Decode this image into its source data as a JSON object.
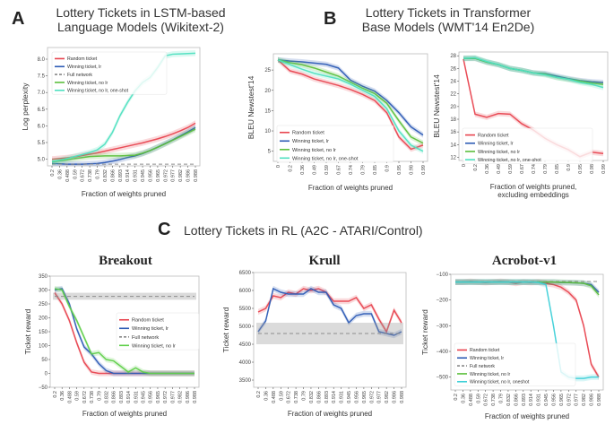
{
  "sections": {
    "A": {
      "letter": "A",
      "title_line1": "Lottery Tickets in LSTM-based",
      "title_line2": "Language Models (Wikitext-2)"
    },
    "B": {
      "letter": "B",
      "title_line1": "Lottery Tickets in Transformer",
      "title_line2": "Base Models (WMT'14 En2De)"
    },
    "C": {
      "letter": "C",
      "title": "Lottery Tickets in RL (A2C - ATARI/Control)"
    }
  },
  "colors": {
    "random": "#e8444f",
    "winning_lr": "#2d5bb5",
    "full": "#888888",
    "winning_nolr": "#5cbf3c",
    "oneshot": "#4fe0c0",
    "oneshot_rl": "#40d0d8",
    "breakout_nolr": "#5fcf4a"
  },
  "chart_data": [
    {
      "id": "lstm",
      "type": "line",
      "title": "",
      "xlabel": "Fraction of weights pruned",
      "ylabel": "Log perplexity",
      "ylim": [
        4.8,
        8.35
      ],
      "yticks": [
        5.0,
        5.5,
        6.0,
        6.5,
        7.0,
        7.5,
        8.0
      ],
      "yticklabels": [
        "5.0",
        "5.5",
        "6.0",
        "6.5",
        "7.0",
        "7.5",
        "8.0"
      ],
      "categories": [
        "0.2",
        "0.36",
        "0.488",
        "0.59",
        "0.672",
        "0.738",
        "0.79",
        "0.832",
        "0.866",
        "0.893",
        "0.914",
        "0.931",
        "0.945",
        "0.956",
        "0.965",
        "0.972",
        "0.977",
        "0.982",
        "0.986",
        "0.988"
      ],
      "legend": "top-left",
      "series": [
        {
          "name": "Random ticket",
          "key": "random",
          "values": [
            5.0,
            5.02,
            5.04,
            5.07,
            5.11,
            5.15,
            5.19,
            5.24,
            5.29,
            5.34,
            5.39,
            5.44,
            5.49,
            5.55,
            5.61,
            5.68,
            5.76,
            5.85,
            5.95,
            6.08
          ]
        },
        {
          "name": "Winning ticket, lr",
          "key": "winning_lr",
          "values": [
            4.87,
            4.86,
            4.85,
            4.85,
            4.85,
            4.86,
            4.87,
            4.9,
            4.94,
            4.99,
            5.05,
            5.1,
            5.17,
            5.26,
            5.36,
            5.47,
            5.58,
            5.7,
            5.82,
            5.95
          ]
        },
        {
          "name": "Full network",
          "key": "full",
          "dashed": true,
          "values": [
            4.85,
            4.85,
            4.85,
            4.85,
            4.85,
            4.85,
            4.85,
            4.85,
            4.85,
            4.85,
            4.85,
            4.85,
            4.85,
            4.85,
            4.85,
            4.85,
            4.85,
            4.85,
            4.85,
            4.85
          ]
        },
        {
          "name": "Winning ticket, no lr",
          "key": "winning_nolr",
          "values": [
            4.92,
            4.95,
            4.98,
            5.02,
            5.05,
            5.08,
            5.09,
            5.1,
            5.1,
            5.1,
            5.11,
            5.12,
            5.18,
            5.26,
            5.36,
            5.46,
            5.57,
            5.68,
            5.79,
            5.9
          ]
        },
        {
          "name": "Winning ticket, no lr, one-shot",
          "key": "oneshot",
          "values": [
            4.93,
            4.97,
            5.02,
            5.08,
            5.14,
            5.2,
            5.28,
            5.45,
            5.8,
            6.3,
            6.7,
            7.05,
            7.3,
            7.45,
            7.75,
            8.1,
            8.15,
            8.16,
            8.17,
            8.18
          ]
        }
      ]
    },
    {
      "id": "transformer1",
      "type": "line",
      "xlabel": "Fraction of weights pruned",
      "ylabel": "BLEU Newstest'14",
      "ylim": [
        2.5,
        29
      ],
      "yticks": [
        5,
        10,
        15,
        20,
        25
      ],
      "yticklabels": [
        "5",
        "10",
        "15",
        "20",
        "25"
      ],
      "categories": [
        "0",
        "0.2",
        "0.36",
        "0.49",
        "0.59",
        "0.67",
        "0.74",
        "0.79",
        "0.85",
        "0.9",
        "0.95",
        "0.98",
        "0.99"
      ],
      "legend": "bottom-left",
      "series": [
        {
          "name": "Random ticket",
          "key": "random",
          "values": [
            27.5,
            24.8,
            24.0,
            22.8,
            22.0,
            21.2,
            20.2,
            19.0,
            17.5,
            14.5,
            8.5,
            5.5,
            6.5
          ]
        },
        {
          "name": "Winning ticket, lr",
          "key": "winning_lr",
          "values": [
            27.5,
            27.2,
            27.0,
            26.7,
            26.4,
            25.5,
            22.5,
            21.0,
            19.8,
            17.5,
            14.5,
            11.0,
            9.0
          ]
        },
        {
          "name": "Winning ticket, no lr",
          "key": "winning_nolr",
          "values": [
            27.5,
            26.8,
            26.3,
            25.5,
            24.5,
            23.5,
            22.0,
            20.5,
            19.2,
            16.8,
            12.5,
            8.5,
            7.0
          ]
        },
        {
          "name": "Winning ticket, no lr, one-shot",
          "key": "oneshot",
          "values": [
            27.5,
            26.3,
            25.2,
            24.2,
            23.5,
            22.8,
            21.5,
            20.0,
            18.5,
            15.5,
            10.0,
            6.5,
            5.0
          ]
        }
      ]
    },
    {
      "id": "transformer2",
      "type": "line",
      "xlabel": "Fraction of weights pruned,",
      "xlabel2": "excluding embeddings",
      "ylabel": "BLEU Newstest'14",
      "ylim": [
        11.5,
        28.6
      ],
      "yticks": [
        12,
        14,
        16,
        18,
        20,
        22,
        24,
        26,
        28
      ],
      "yticklabels": [
        "12",
        "14",
        "16",
        "18",
        "20",
        "22",
        "24",
        "26",
        "28"
      ],
      "categories": [
        "0",
        "0.2",
        "0.36",
        "0.49",
        "0.59",
        "0.67",
        "0.74",
        "0.79",
        "0.85",
        "0.9",
        "0.95",
        "0.98",
        "0.99"
      ],
      "legend": "bottom-left",
      "series": [
        {
          "name": "Random ticket",
          "key": "random",
          "values": [
            27.5,
            18.8,
            18.3,
            18.9,
            18.8,
            17.3,
            16.3,
            15.0,
            14.0,
            13.2,
            12.1,
            12.8,
            12.6
          ]
        },
        {
          "name": "Winning ticket, lr",
          "key": "winning_lr",
          "values": [
            27.6,
            27.6,
            27.0,
            26.6,
            26.0,
            25.7,
            25.3,
            25.2,
            24.8,
            24.4,
            24.1,
            23.9,
            23.8
          ]
        },
        {
          "name": "Winning ticket, no lr",
          "key": "winning_nolr",
          "values": [
            27.6,
            27.6,
            27.0,
            26.6,
            26.0,
            25.7,
            25.3,
            25.1,
            24.6,
            24.3,
            24.0,
            23.7,
            23.5
          ]
        },
        {
          "name": "Winning ticket, no lr, one-shot",
          "key": "oneshot",
          "values": [
            27.6,
            27.7,
            27.1,
            26.6,
            26.0,
            25.7,
            25.3,
            25.0,
            24.6,
            24.3,
            23.8,
            23.5,
            23.0
          ]
        }
      ]
    },
    {
      "id": "breakout",
      "type": "line",
      "title": "Breakout",
      "xlabel": "Fraction of weights pruned",
      "ylabel": "Ticket reward",
      "ylim": [
        -50,
        350
      ],
      "yticks": [
        -50,
        0,
        50,
        100,
        150,
        200,
        250,
        300,
        350
      ],
      "yticklabels": [
        "−50",
        "0",
        "50",
        "100",
        "150",
        "200",
        "250",
        "300",
        "350"
      ],
      "categories": [
        "0.2",
        "0.36",
        "0.488",
        "0.59",
        "0.672",
        "0.738",
        "0.79",
        "0.832",
        "0.866",
        "0.893",
        "0.914",
        "0.931",
        "0.945",
        "0.956",
        "0.965",
        "0.972",
        "0.977",
        "0.982",
        "0.986",
        "0.988"
      ],
      "legend": "center-right",
      "series": [
        {
          "name": "Random ticket",
          "key": "random",
          "values": [
            290,
            250,
            190,
            110,
            40,
            5,
            0,
            0,
            0,
            0,
            0,
            0,
            0,
            0,
            0,
            0,
            0,
            0,
            0,
            0
          ]
        },
        {
          "name": "Winning ticket, lr",
          "key": "winning_lr",
          "values": [
            300,
            305,
            250,
            160,
            95,
            70,
            35,
            10,
            0,
            0,
            0,
            0,
            0,
            0,
            0,
            0,
            0,
            0,
            0,
            0
          ]
        },
        {
          "name": "Full network",
          "key": "full",
          "dashed": true,
          "band": [
            265,
            290
          ],
          "values": [
            277,
            277,
            277,
            277,
            277,
            277,
            277,
            277,
            277,
            277,
            277,
            277,
            277,
            277,
            277,
            277,
            277,
            277,
            277,
            277
          ]
        },
        {
          "name": "Winning ticket, no lr",
          "key": "breakout_nolr",
          "values": [
            305,
            300,
            240,
            190,
            130,
            70,
            75,
            50,
            45,
            25,
            5,
            20,
            5,
            0,
            0,
            0,
            0,
            0,
            0,
            0
          ]
        }
      ]
    },
    {
      "id": "krull",
      "type": "line",
      "title": "Krull",
      "xlabel": "Fraction of weights pruned",
      "ylabel": "Ticket reward",
      "ylim": [
        3300,
        6500
      ],
      "yticks": [
        3500,
        4000,
        4500,
        5000,
        5500,
        6000,
        6500
      ],
      "yticklabels": [
        "3500",
        "4000",
        "4500",
        "5000",
        "5500",
        "6000",
        "6500"
      ],
      "categories": [
        "0.2",
        "0.36",
        "0.488",
        "0.59",
        "0.672",
        "0.738",
        "0.79",
        "0.832",
        "0.866",
        "0.893",
        "0.914",
        "0.931",
        "0.945",
        "0.956",
        "0.965",
        "0.972",
        "0.977",
        "0.982",
        "0.986",
        "0.988"
      ],
      "legend": "none",
      "series": [
        {
          "name": "Random ticket",
          "key": "random",
          "values": [
            5400,
            5500,
            5850,
            5800,
            5950,
            5900,
            6050,
            6000,
            6050,
            5950,
            5700,
            5700,
            5700,
            5800,
            5500,
            5600,
            5200,
            4850,
            5450,
            5100
          ]
        },
        {
          "name": "Winning ticket, lr",
          "key": "winning_lr",
          "values": [
            4850,
            5150,
            6050,
            5950,
            5900,
            5900,
            5900,
            6050,
            5950,
            5950,
            5600,
            5500,
            5100,
            5300,
            5350,
            5350,
            4850,
            4800,
            4750,
            4850
          ]
        },
        {
          "name": "Full network",
          "key": "full",
          "dashed": true,
          "band": [
            4500,
            5100
          ],
          "values": [
            4800,
            4800,
            4800,
            4800,
            4800,
            4800,
            4800,
            4800,
            4800,
            4800,
            4800,
            4800,
            4800,
            4800,
            4800,
            4800,
            4800,
            4800,
            4800,
            4800
          ]
        }
      ]
    },
    {
      "id": "acrobot",
      "type": "line",
      "title": "Acrobot-v1",
      "xlabel": "Fraction of weights pruned",
      "ylabel": "Ticket reward",
      "ylim": [
        -550,
        -100
      ],
      "yticks": [
        -500,
        -400,
        -300,
        -200,
        -100
      ],
      "yticklabels": [
        "−500",
        "−400",
        "−300",
        "−200",
        "−100"
      ],
      "categories": [
        "0.2",
        "0.36",
        "0.488",
        "0.59",
        "0.672",
        "0.738",
        "0.79",
        "0.832",
        "0.866",
        "0.893",
        "0.914",
        "0.931",
        "0.945",
        "0.956",
        "0.965",
        "0.972",
        "0.977",
        "0.982",
        "0.986",
        "0.988"
      ],
      "legend": "bottom-left",
      "series": [
        {
          "name": "Random ticket",
          "key": "random",
          "values": [
            -130,
            -130,
            -128,
            -130,
            -132,
            -130,
            -128,
            -130,
            -135,
            -130,
            -132,
            -130,
            -135,
            -140,
            -150,
            -170,
            -200,
            -300,
            -450,
            -500
          ]
        },
        {
          "name": "Winning ticket, lr",
          "key": "winning_lr",
          "values": [
            -130,
            -130,
            -130,
            -130,
            -130,
            -130,
            -130,
            -130,
            -130,
            -130,
            -130,
            -130,
            -130,
            -130,
            -132,
            -132,
            -133,
            -135,
            -140,
            -170
          ]
        },
        {
          "name": "Full network",
          "key": "full",
          "dashed": true,
          "values": [
            -128,
            -128,
            -128,
            -128,
            -128,
            -128,
            -128,
            -128,
            -128,
            -128,
            -128,
            -128,
            -128,
            -128,
            -128,
            -128,
            -128,
            -128,
            -128,
            -128
          ]
        },
        {
          "name": "Winning ticket, no lr",
          "key": "winning_nolr",
          "values": [
            -130,
            -130,
            -130,
            -130,
            -130,
            -130,
            -130,
            -130,
            -130,
            -130,
            -130,
            -130,
            -130,
            -130,
            -131,
            -132,
            -133,
            -135,
            -145,
            -180
          ]
        },
        {
          "name": "Winning ticket, no lr, oneshot",
          "key": "oneshot_rl",
          "values": [
            -130,
            -130,
            -130,
            -130,
            -130,
            -130,
            -130,
            -130,
            -130,
            -130,
            -130,
            -132,
            -140,
            -300,
            -480,
            -500,
            -505,
            -505,
            -500,
            -500
          ]
        }
      ]
    }
  ]
}
